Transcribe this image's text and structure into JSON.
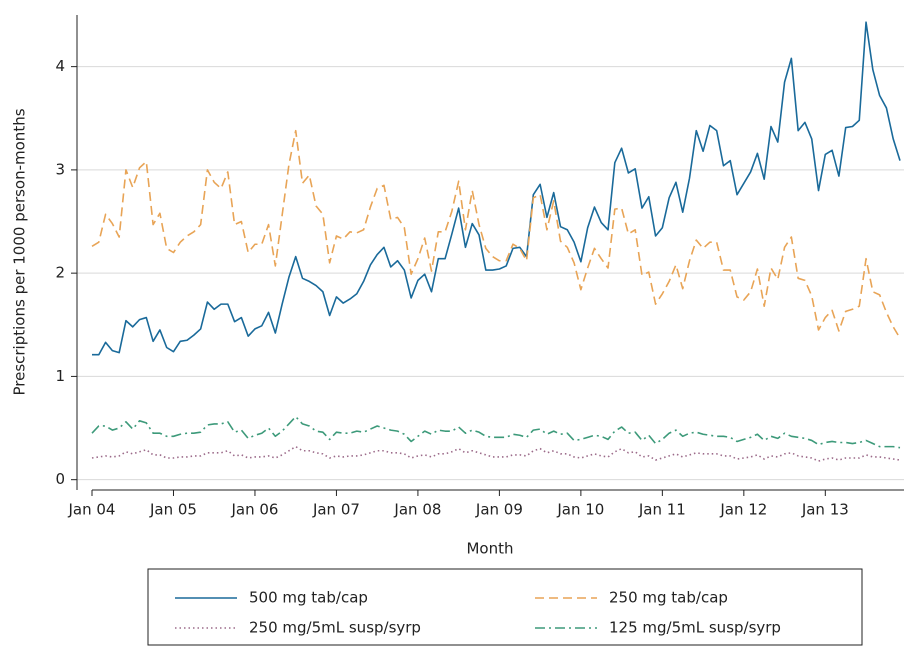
{
  "chart_data": {
    "type": "line",
    "x_label": "Month",
    "y_label": "Prescriptions per 1000 person-months",
    "categories": [
      "Jan 04",
      null,
      null,
      null,
      null,
      null,
      null,
      null,
      null,
      null,
      null,
      null,
      "Jan 05",
      null,
      null,
      null,
      null,
      null,
      null,
      null,
      null,
      null,
      null,
      null,
      "Jan 06",
      null,
      null,
      null,
      null,
      null,
      null,
      null,
      null,
      null,
      null,
      null,
      "Jan 07",
      null,
      null,
      null,
      null,
      null,
      null,
      null,
      null,
      null,
      null,
      null,
      "Jan 08",
      null,
      null,
      null,
      null,
      null,
      null,
      null,
      null,
      null,
      null,
      null,
      "Jan 09",
      null,
      null,
      null,
      null,
      null,
      null,
      null,
      null,
      null,
      null,
      null,
      "Jan 10",
      null,
      null,
      null,
      null,
      null,
      null,
      null,
      null,
      null,
      null,
      null,
      "Jan 11",
      null,
      null,
      null,
      null,
      null,
      null,
      null,
      null,
      null,
      null,
      null,
      "Jan 12",
      null,
      null,
      null,
      null,
      null,
      null,
      null,
      null,
      null,
      null,
      null,
      "Jan 13",
      null,
      null,
      null,
      null,
      null,
      null,
      null,
      null,
      null,
      null,
      null
    ],
    "ylim": [
      -0.1,
      4.5
    ],
    "yticks": [
      0,
      1,
      2,
      3,
      4
    ],
    "grid": true,
    "legend": "bottom",
    "series": [
      {
        "name": "500 mg tab/cap",
        "color": "#1a6a9a",
        "style": "solid",
        "values": [
          1.21,
          1.21,
          1.33,
          1.25,
          1.23,
          1.54,
          1.48,
          1.55,
          1.57,
          1.34,
          1.45,
          1.28,
          1.24,
          1.34,
          1.35,
          1.4,
          1.46,
          1.72,
          1.65,
          1.7,
          1.7,
          1.53,
          1.57,
          1.39,
          1.46,
          1.49,
          1.62,
          1.42,
          1.7,
          1.96,
          2.16,
          1.95,
          1.92,
          1.88,
          1.82,
          1.59,
          1.77,
          1.71,
          1.75,
          1.8,
          1.92,
          2.08,
          2.18,
          2.25,
          2.06,
          2.12,
          2.03,
          1.76,
          1.93,
          1.99,
          1.82,
          2.14,
          2.14,
          2.38,
          2.63,
          2.25,
          2.48,
          2.37,
          2.03,
          2.03,
          2.04,
          2.07,
          2.24,
          2.25,
          2.16,
          2.76,
          2.86,
          2.54,
          2.78,
          2.45,
          2.42,
          2.3,
          2.11,
          2.44,
          2.64,
          2.49,
          2.42,
          3.07,
          3.21,
          2.97,
          3.01,
          2.63,
          2.74,
          2.36,
          2.44,
          2.73,
          2.88,
          2.59,
          2.92,
          3.38,
          3.18,
          3.43,
          3.38,
          3.04,
          3.09,
          2.76,
          2.87,
          2.98,
          3.16,
          2.91,
          3.42,
          3.27,
          3.85,
          4.08,
          3.38,
          3.46,
          3.3,
          2.8,
          3.15,
          3.19,
          2.94,
          3.41,
          3.42,
          3.48,
          4.43,
          3.97,
          3.72,
          3.6,
          3.3,
          3.09
        ]
      },
      {
        "name": "250 mg tab/cap",
        "color": "#e8a456",
        "style": "dashed",
        "values": [
          2.26,
          2.3,
          2.57,
          2.48,
          2.35,
          3.0,
          2.83,
          3.02,
          3.08,
          2.47,
          2.58,
          2.24,
          2.2,
          2.3,
          2.36,
          2.4,
          2.47,
          3.0,
          2.88,
          2.82,
          2.98,
          2.47,
          2.5,
          2.2,
          2.28,
          2.28,
          2.47,
          2.07,
          2.56,
          3.05,
          3.38,
          2.87,
          2.95,
          2.65,
          2.57,
          2.1,
          2.36,
          2.33,
          2.4,
          2.39,
          2.42,
          2.64,
          2.82,
          2.85,
          2.52,
          2.54,
          2.44,
          1.99,
          2.14,
          2.34,
          2.02,
          2.4,
          2.4,
          2.6,
          2.89,
          2.42,
          2.8,
          2.47,
          2.24,
          2.16,
          2.12,
          2.12,
          2.28,
          2.24,
          2.12,
          2.73,
          2.76,
          2.42,
          2.7,
          2.31,
          2.25,
          2.1,
          1.84,
          2.05,
          2.24,
          2.14,
          2.05,
          2.62,
          2.63,
          2.38,
          2.42,
          1.98,
          2.01,
          1.7,
          1.8,
          1.92,
          2.08,
          1.85,
          2.12,
          2.32,
          2.24,
          2.3,
          2.3,
          2.03,
          2.03,
          1.77,
          1.74,
          1.82,
          2.04,
          1.68,
          2.05,
          1.94,
          2.25,
          2.35,
          1.95,
          1.93,
          1.78,
          1.45,
          1.57,
          1.64,
          1.44,
          1.63,
          1.65,
          1.68,
          2.14,
          1.82,
          1.79,
          1.62,
          1.48,
          1.37
        ]
      },
      {
        "name": "250 mg/5mL susp/syrp",
        "color": "#9c6b8a",
        "style": "dotted",
        "values": [
          0.21,
          0.22,
          0.23,
          0.22,
          0.23,
          0.27,
          0.25,
          0.27,
          0.29,
          0.24,
          0.24,
          0.21,
          0.21,
          0.22,
          0.22,
          0.23,
          0.23,
          0.26,
          0.26,
          0.26,
          0.28,
          0.23,
          0.24,
          0.21,
          0.22,
          0.22,
          0.23,
          0.21,
          0.24,
          0.28,
          0.32,
          0.28,
          0.28,
          0.26,
          0.25,
          0.21,
          0.23,
          0.22,
          0.23,
          0.23,
          0.24,
          0.26,
          0.28,
          0.28,
          0.26,
          0.26,
          0.25,
          0.21,
          0.23,
          0.24,
          0.22,
          0.25,
          0.25,
          0.27,
          0.3,
          0.26,
          0.28,
          0.26,
          0.24,
          0.22,
          0.22,
          0.22,
          0.24,
          0.24,
          0.23,
          0.28,
          0.3,
          0.26,
          0.28,
          0.25,
          0.25,
          0.22,
          0.21,
          0.23,
          0.25,
          0.23,
          0.22,
          0.27,
          0.3,
          0.26,
          0.27,
          0.22,
          0.23,
          0.19,
          0.21,
          0.23,
          0.25,
          0.22,
          0.24,
          0.26,
          0.25,
          0.25,
          0.25,
          0.23,
          0.23,
          0.2,
          0.21,
          0.22,
          0.24,
          0.2,
          0.23,
          0.22,
          0.25,
          0.26,
          0.23,
          0.22,
          0.21,
          0.18,
          0.2,
          0.21,
          0.19,
          0.21,
          0.21,
          0.21,
          0.24,
          0.22,
          0.22,
          0.21,
          0.2,
          0.19
        ]
      },
      {
        "name": "125 mg/5mL susp/syrp",
        "color": "#3d9a7a",
        "style": "dashdot",
        "values": [
          0.45,
          0.52,
          0.52,
          0.48,
          0.5,
          0.56,
          0.49,
          0.57,
          0.55,
          0.45,
          0.45,
          0.42,
          0.42,
          0.44,
          0.45,
          0.45,
          0.46,
          0.53,
          0.54,
          0.54,
          0.56,
          0.46,
          0.48,
          0.4,
          0.43,
          0.45,
          0.5,
          0.42,
          0.47,
          0.54,
          0.61,
          0.54,
          0.52,
          0.47,
          0.46,
          0.39,
          0.46,
          0.45,
          0.45,
          0.47,
          0.46,
          0.49,
          0.52,
          0.5,
          0.48,
          0.47,
          0.44,
          0.37,
          0.42,
          0.47,
          0.44,
          0.48,
          0.47,
          0.47,
          0.51,
          0.45,
          0.48,
          0.46,
          0.42,
          0.41,
          0.41,
          0.41,
          0.44,
          0.43,
          0.41,
          0.48,
          0.49,
          0.44,
          0.47,
          0.44,
          0.45,
          0.38,
          0.39,
          0.41,
          0.43,
          0.42,
          0.39,
          0.47,
          0.51,
          0.45,
          0.46,
          0.38,
          0.43,
          0.35,
          0.39,
          0.45,
          0.48,
          0.42,
          0.45,
          0.46,
          0.44,
          0.43,
          0.42,
          0.42,
          0.41,
          0.37,
          0.39,
          0.41,
          0.44,
          0.38,
          0.42,
          0.4,
          0.45,
          0.42,
          0.41,
          0.4,
          0.38,
          0.34,
          0.36,
          0.37,
          0.36,
          0.36,
          0.35,
          0.36,
          0.38,
          0.35,
          0.32,
          0.32,
          0.32,
          0.31
        ]
      }
    ]
  }
}
